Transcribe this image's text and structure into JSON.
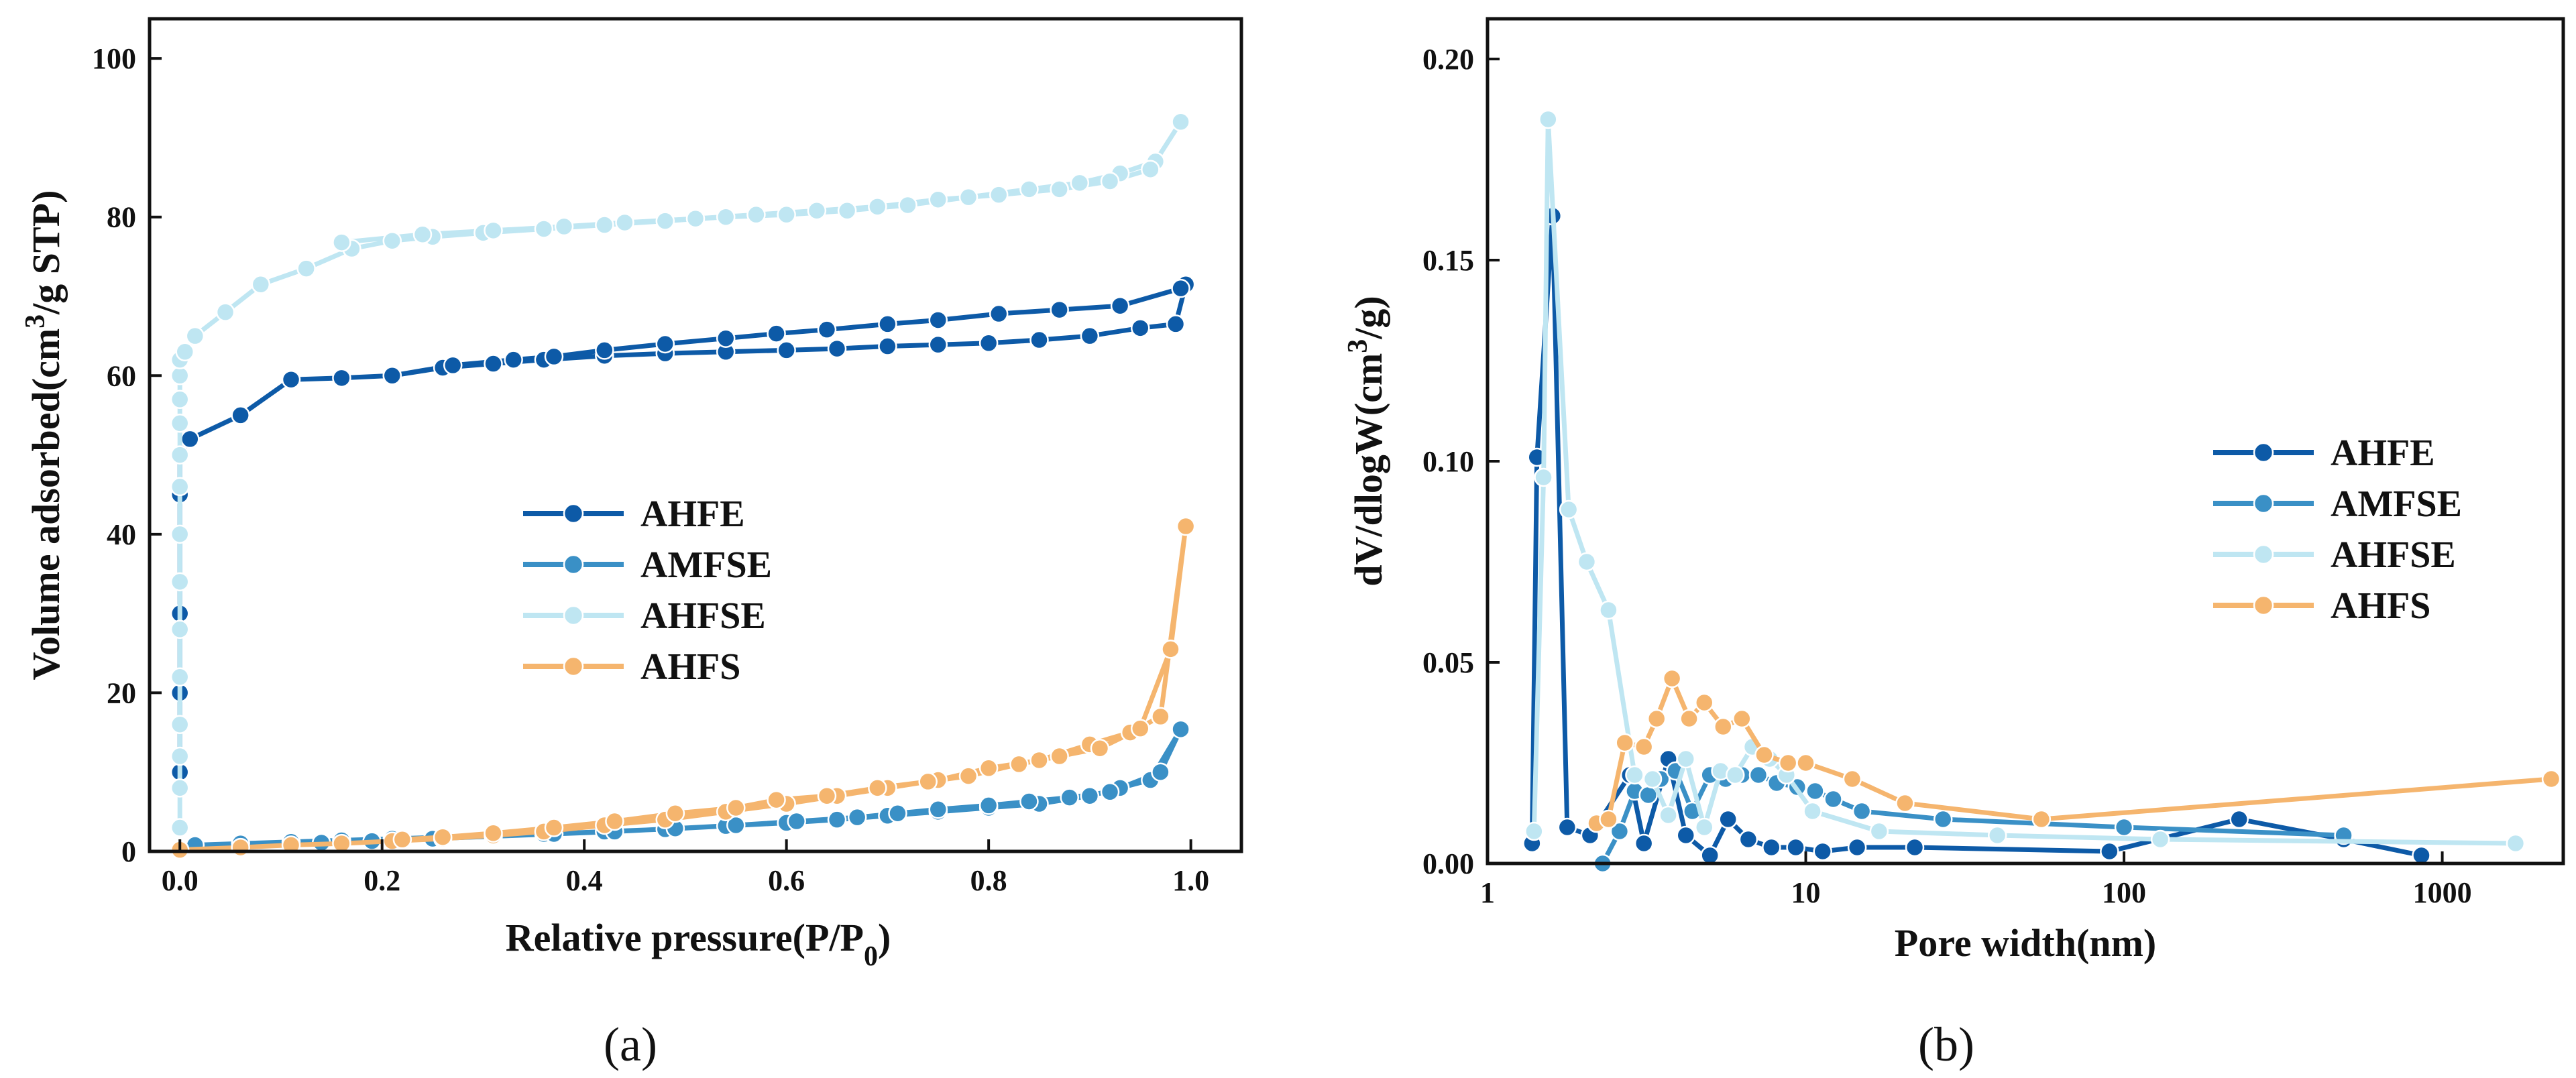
{
  "figure": {
    "panel_labels": [
      "(a)",
      "(b)"
    ]
  },
  "chart_data": [
    {
      "type": "line",
      "panel": "(a)",
      "title": "",
      "xlabel": "Relative pressure(P/P",
      "xlabel_subscript": "0",
      "xlabel_suffix": ")",
      "ylabel": "Volume adsorbed(cm",
      "ylabel_superscript": "3",
      "ylabel_suffix": "/g STP)",
      "xlim": [
        -0.03,
        1.05
      ],
      "ylim": [
        0,
        105
      ],
      "xticks": [
        0.0,
        0.2,
        0.4,
        0.6,
        0.8,
        1.0
      ],
      "xtick_labels": [
        "0.0",
        "0.2",
        "0.4",
        "0.6",
        "0.8",
        "1.0"
      ],
      "yticks": [
        0,
        20,
        40,
        60,
        80,
        100
      ],
      "ytick_labels": [
        "0",
        "20",
        "40",
        "60",
        "80",
        "100"
      ],
      "legend": [
        "AHFE",
        "AMFSE",
        "AHFSE",
        "AHFS"
      ],
      "series": [
        {
          "name": "AHFE",
          "color": "#0d5aa7",
          "x": [
            0,
            0,
            0,
            0,
            0,
            0,
            0.01,
            0.06,
            0.11,
            0.16,
            0.21,
            0.26,
            0.31,
            0.36,
            0.42,
            0.48,
            0.54,
            0.6,
            0.65,
            0.7,
            0.75,
            0.8,
            0.85,
            0.9,
            0.95,
            0.985,
            0.995,
            0.99,
            0.93,
            0.87,
            0.81,
            0.75,
            0.7,
            0.64,
            0.59,
            0.54,
            0.48,
            0.42,
            0.37,
            0.33,
            0.27,
            0.21
          ],
          "y": [
            10,
            20,
            30,
            40,
            45,
            50,
            52,
            55,
            59.5,
            59.7,
            60,
            61,
            61.5,
            62,
            62.5,
            62.8,
            63,
            63.2,
            63.4,
            63.7,
            63.9,
            64.1,
            64.5,
            65,
            66,
            66.5,
            71.5,
            71,
            68.8,
            68.3,
            67.8,
            67,
            66.5,
            65.8,
            65.3,
            64.7,
            64,
            63.2,
            62.4,
            62,
            61.3,
            60
          ]
        },
        {
          "name": "AMFSE",
          "color": "#3a90c6",
          "x": [
            0.0,
            0.015,
            0.06,
            0.11,
            0.16,
            0.21,
            0.26,
            0.31,
            0.36,
            0.42,
            0.48,
            0.54,
            0.6,
            0.65,
            0.7,
            0.75,
            0.8,
            0.85,
            0.9,
            0.93,
            0.96,
            0.99,
            0.97,
            0.92,
            0.88,
            0.84,
            0.8,
            0.75,
            0.71,
            0.67,
            0.61,
            0.55,
            0.49,
            0.43,
            0.37,
            0.31,
            0.25,
            0.19,
            0.14
          ],
          "y": [
            0.1,
            0.8,
            1.0,
            1.2,
            1.4,
            1.6,
            1.8,
            2.0,
            2.2,
            2.5,
            2.8,
            3.2,
            3.6,
            4.0,
            4.5,
            5.0,
            5.5,
            6.0,
            7.0,
            8.0,
            9.0,
            15.4,
            10.0,
            7.5,
            6.8,
            6.3,
            5.8,
            5.3,
            4.8,
            4.3,
            3.8,
            3.3,
            2.9,
            2.5,
            2.2,
            1.9,
            1.6,
            1.3,
            1.1
          ]
        },
        {
          "name": "AHFSE",
          "color": "#bfe6f2",
          "x": [
            0,
            0,
            0,
            0,
            0,
            0,
            0,
            0,
            0,
            0,
            0,
            0,
            0,
            0,
            0.005,
            0.015,
            0.045,
            0.08,
            0.125,
            0.17,
            0.21,
            0.25,
            0.3,
            0.36,
            0.42,
            0.48,
            0.54,
            0.6,
            0.66,
            0.72,
            0.78,
            0.84,
            0.89,
            0.93,
            0.965,
            0.99,
            0.96,
            0.92,
            0.87,
            0.81,
            0.75,
            0.69,
            0.63,
            0.57,
            0.51,
            0.44,
            0.38,
            0.31,
            0.24,
            0.16
          ],
          "y": [
            3,
            8,
            12,
            16,
            22,
            28,
            34,
            40,
            46,
            50,
            54,
            57,
            60,
            62,
            63,
            65,
            68,
            71.5,
            73.5,
            76,
            77,
            77.5,
            78,
            78.5,
            79,
            79.5,
            80,
            80.3,
            80.8,
            81.5,
            82.5,
            83.5,
            84.3,
            85.5,
            87,
            92,
            86,
            84.5,
            83.5,
            82.8,
            82.2,
            81.3,
            80.8,
            80.3,
            79.8,
            79.3,
            78.8,
            78.3,
            77.8,
            76.8
          ]
        },
        {
          "name": "AHFS",
          "color": "#f5b56e",
          "x": [
            0.0,
            0.06,
            0.11,
            0.16,
            0.21,
            0.26,
            0.31,
            0.36,
            0.42,
            0.48,
            0.54,
            0.6,
            0.65,
            0.7,
            0.75,
            0.8,
            0.85,
            0.9,
            0.94,
            0.97,
            0.995,
            0.98,
            0.95,
            0.91,
            0.87,
            0.83,
            0.78,
            0.74,
            0.69,
            0.64,
            0.59,
            0.55,
            0.49,
            0.43,
            0.37,
            0.31,
            0.26,
            0.22
          ],
          "y": [
            0.2,
            0.5,
            0.8,
            1.0,
            1.3,
            1.6,
            2.0,
            2.5,
            3.3,
            4.0,
            5.0,
            6.0,
            7.0,
            8.0,
            9.0,
            10.5,
            11.5,
            13.5,
            15.0,
            17.0,
            41.0,
            25.5,
            15.5,
            13.0,
            12.0,
            11.0,
            9.5,
            8.8,
            8.0,
            7.0,
            6.5,
            5.5,
            4.8,
            3.8,
            3.0,
            2.3,
            1.8,
            1.5
          ]
        }
      ]
    },
    {
      "type": "line",
      "panel": "(b)",
      "title": "",
      "xlabel": "Pore width(nm)",
      "ylabel": "dV/dlogW(cm",
      "ylabel_superscript": "3",
      "ylabel_suffix": "/g)",
      "xscale": "log",
      "xlim": [
        1,
        2400
      ],
      "ylim": [
        0,
        0.21
      ],
      "xticks": [
        1,
        10,
        100,
        1000
      ],
      "xtick_labels": [
        "1",
        "10",
        "100",
        "1000"
      ],
      "yticks": [
        0.0,
        0.05,
        0.1,
        0.15,
        0.2
      ],
      "ytick_labels": [
        "0.00",
        "0.05",
        "0.10",
        "0.15",
        "0.20"
      ],
      "legend": [
        "AHFE",
        "AMFSE",
        "AHFSE",
        "AHFS"
      ],
      "series": [
        {
          "name": "AHFE",
          "color": "#0d5aa7",
          "x": [
            1.38,
            1.43,
            1.6,
            1.78,
            2.1,
            2.8,
            3.1,
            3.7,
            4.2,
            5.0,
            5.7,
            6.6,
            7.8,
            9.3,
            11.3,
            14.5,
            22,
            90,
            230,
            490,
            860
          ],
          "y": [
            0.005,
            0.101,
            0.161,
            0.009,
            0.007,
            0.022,
            0.005,
            0.026,
            0.007,
            0.002,
            0.011,
            0.006,
            0.004,
            0.004,
            0.003,
            0.004,
            0.004,
            0.003,
            0.011,
            0.006,
            0.002
          ]
        },
        {
          "name": "AMFSE",
          "color": "#3a90c6",
          "x": [
            2.3,
            2.6,
            2.9,
            3.2,
            3.5,
            3.9,
            4.4,
            5.0,
            5.6,
            6.3,
            7.1,
            8.1,
            9.4,
            10.7,
            12.2,
            15,
            27,
            100,
            490
          ],
          "y": [
            0.0,
            0.008,
            0.018,
            0.017,
            0.021,
            0.023,
            0.013,
            0.022,
            0.021,
            0.022,
            0.022,
            0.02,
            0.019,
            0.018,
            0.016,
            0.013,
            0.011,
            0.009,
            0.007
          ]
        },
        {
          "name": "AHFSE",
          "color": "#bfe6f2",
          "x": [
            1.4,
            1.5,
            1.55,
            1.8,
            2.05,
            2.4,
            2.9,
            3.3,
            3.7,
            4.2,
            4.8,
            5.4,
            6.0,
            6.8,
            7.7,
            8.7,
            10.5,
            17,
            40,
            130,
            1700
          ],
          "y": [
            0.008,
            0.096,
            0.185,
            0.088,
            0.075,
            0.063,
            0.022,
            0.021,
            0.012,
            0.026,
            0.009,
            0.023,
            0.022,
            0.029,
            0.026,
            0.022,
            0.013,
            0.008,
            0.007,
            0.006,
            0.005
          ]
        },
        {
          "name": "AHFS",
          "color": "#f5b56e",
          "x": [
            2.2,
            2.4,
            2.7,
            3.1,
            3.4,
            3.8,
            4.3,
            4.8,
            5.5,
            6.3,
            7.4,
            8.8,
            10.0,
            14.0,
            20.5,
            55,
            2200
          ],
          "y": [
            0.01,
            0.011,
            0.03,
            0.029,
            0.036,
            0.046,
            0.036,
            0.04,
            0.034,
            0.036,
            0.027,
            0.025,
            0.025,
            0.021,
            0.015,
            0.011,
            0.021
          ]
        }
      ]
    }
  ]
}
